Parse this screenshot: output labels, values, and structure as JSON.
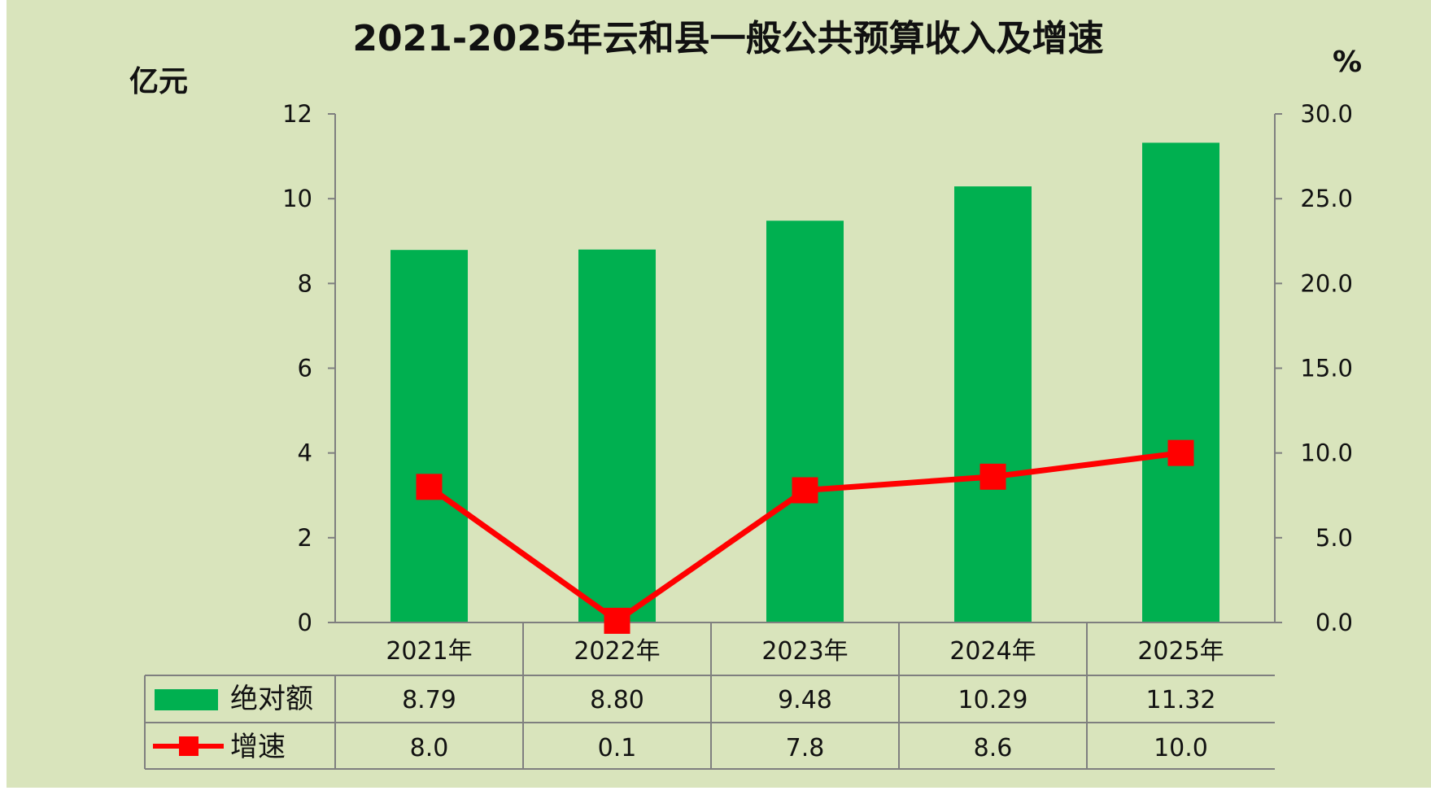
{
  "chart_data": {
    "type": "bar+line",
    "title": "2021-2025年云和县一般公共预算收入及增速",
    "y_left_unit": "亿元",
    "y_right_unit": "%",
    "categories": [
      "2021年",
      "2022年",
      "2023年",
      "2024年",
      "2025年"
    ],
    "y_left_ticks": [
      "0",
      "2",
      "4",
      "6",
      "8",
      "10",
      "12"
    ],
    "y_right_ticks": [
      "0.0",
      "5.0",
      "10.0",
      "15.0",
      "20.0",
      "25.0",
      "30.0"
    ],
    "ylim_left": [
      0,
      12
    ],
    "ylim_right": [
      0,
      30
    ],
    "series": [
      {
        "name": "绝对额",
        "type": "bar",
        "axis": "left",
        "color": "#00b050",
        "values": [
          8.79,
          8.8,
          9.48,
          10.29,
          11.32
        ],
        "labels": [
          "8.79",
          "8.80",
          "9.48",
          "10.29",
          "11.32"
        ]
      },
      {
        "name": "增速",
        "type": "line",
        "axis": "right",
        "color": "#ff0000",
        "values": [
          8.0,
          0.1,
          7.8,
          8.6,
          10.0
        ],
        "labels": [
          "8.0",
          "0.1",
          "7.8",
          "8.6",
          "10.0"
        ]
      }
    ],
    "legend": "data-table"
  }
}
